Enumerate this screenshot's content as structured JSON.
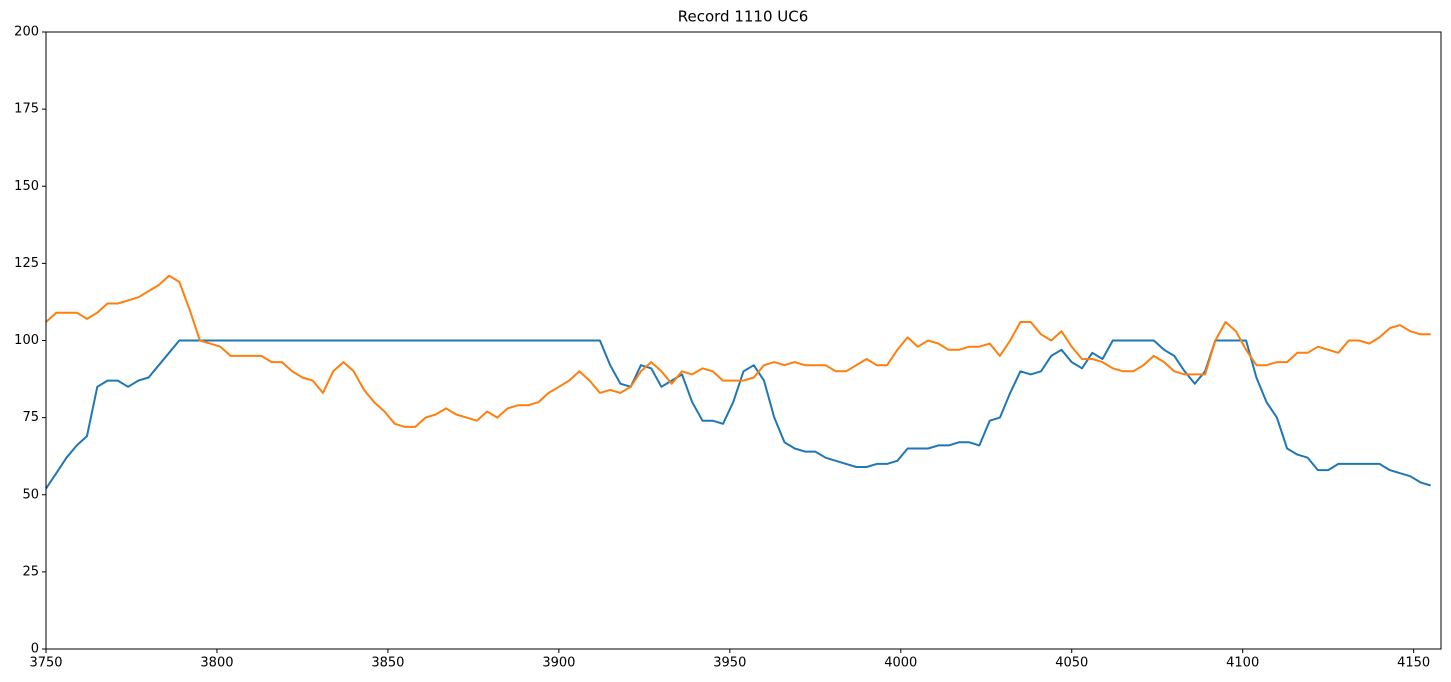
{
  "chart_data": {
    "type": "line",
    "title": "Record 1110 UC6",
    "x": [
      3750,
      3753,
      3756,
      3759,
      3762,
      3765,
      3768,
      3771,
      3774,
      3777,
      3780,
      3783,
      3786,
      3789,
      3792,
      3795,
      3798,
      3801,
      3804,
      3807,
      3810,
      3813,
      3816,
      3819,
      3822,
      3825,
      3828,
      3831,
      3834,
      3837,
      3840,
      3843,
      3846,
      3849,
      3852,
      3855,
      3858,
      3861,
      3864,
      3867,
      3870,
      3873,
      3876,
      3879,
      3882,
      3885,
      3888,
      3891,
      3894,
      3897,
      3900,
      3903,
      3906,
      3909,
      3912,
      3915,
      3918,
      3921,
      3924,
      3927,
      3930,
      3933,
      3936,
      3939,
      3942,
      3945,
      3948,
      3951,
      3954,
      3957,
      3960,
      3963,
      3966,
      3969,
      3972,
      3975,
      3978,
      3981,
      3984,
      3987,
      3990,
      3993,
      3996,
      3999,
      4002,
      4005,
      4008,
      4011,
      4014,
      4017,
      4020,
      4023,
      4026,
      4029,
      4032,
      4035,
      4038,
      4041,
      4044,
      4047,
      4050,
      4053,
      4056,
      4059,
      4062,
      4065,
      4068,
      4071,
      4074,
      4077,
      4080,
      4083,
      4086,
      4089,
      4092,
      4095,
      4098,
      4101,
      4104,
      4107,
      4110,
      4113,
      4116,
      4119,
      4122,
      4125,
      4128,
      4131,
      4134,
      4137,
      4140,
      4143,
      4146,
      4149,
      4152,
      4155
    ],
    "series": [
      {
        "color": "#1f77b4",
        "values": [
          52,
          57,
          62,
          66,
          69,
          85,
          87,
          87,
          85,
          87,
          88,
          92,
          96,
          100,
          100,
          100,
          100,
          100,
          100,
          100,
          100,
          100,
          100,
          100,
          100,
          100,
          100,
          100,
          100,
          100,
          100,
          100,
          100,
          100,
          100,
          100,
          100,
          100,
          100,
          100,
          100,
          100,
          100,
          100,
          100,
          100,
          100,
          100,
          100,
          100,
          100,
          100,
          100,
          100,
          100,
          92,
          86,
          85,
          92,
          91,
          85,
          87,
          89,
          80,
          74,
          74,
          73,
          80,
          90,
          92,
          87,
          75,
          67,
          65,
          64,
          64,
          62,
          61,
          60,
          59,
          59,
          60,
          60,
          61,
          65,
          65,
          65,
          66,
          66,
          67,
          67,
          66,
          74,
          75,
          83,
          90,
          89,
          90,
          95,
          97,
          93,
          91,
          96,
          94,
          100,
          100,
          100,
          100,
          100,
          97,
          95,
          90,
          86,
          90,
          100,
          100,
          100,
          100,
          88,
          80,
          75,
          65,
          63,
          62,
          58,
          58,
          60,
          60,
          60,
          60,
          60,
          58,
          57,
          56,
          54,
          53
        ]
      },
      {
        "color": "#ff7f0e",
        "values": [
          106,
          109,
          109,
          109,
          107,
          109,
          112,
          112,
          113,
          114,
          116,
          118,
          121,
          119,
          110,
          100,
          99,
          98,
          95,
          95,
          95,
          95,
          93,
          93,
          90,
          88,
          87,
          83,
          90,
          93,
          90,
          84,
          80,
          77,
          73,
          72,
          72,
          75,
          76,
          78,
          76,
          75,
          74,
          77,
          75,
          78,
          79,
          79,
          80,
          83,
          85,
          87,
          90,
          87,
          83,
          84,
          83,
          85,
          90,
          93,
          90,
          86,
          90,
          89,
          91,
          90,
          87,
          87,
          87,
          88,
          92,
          93,
          92,
          93,
          92,
          92,
          92,
          90,
          90,
          92,
          94,
          92,
          92,
          97,
          101,
          98,
          100,
          99,
          97,
          97,
          98,
          98,
          99,
          95,
          100,
          106,
          106,
          102,
          100,
          103,
          98,
          94,
          94,
          93,
          91,
          90,
          90,
          92,
          95,
          93,
          90,
          89,
          89,
          89,
          100,
          106,
          103,
          97,
          92,
          92,
          93,
          93,
          96,
          96,
          98,
          97,
          96,
          100,
          100,
          99,
          101,
          104,
          105,
          103,
          102,
          102
        ]
      }
    ],
    "xlim": [
      3750,
      4158
    ],
    "xticks": [
      3750,
      3800,
      3850,
      3900,
      3950,
      4000,
      4050,
      4100,
      4150
    ],
    "ylim": [
      0,
      200
    ],
    "yticks": [
      0,
      25,
      50,
      75,
      100,
      125,
      150,
      175,
      200
    ]
  }
}
